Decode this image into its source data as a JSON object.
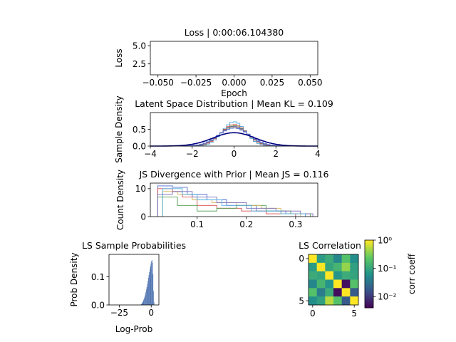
{
  "chart_data": [
    {
      "id": "loss",
      "type": "line",
      "title": "Loss | 0:00:06.104380",
      "xlabel": "Epoch",
      "ylabel": "Loss",
      "xlim": [
        -0.055,
        0.055
      ],
      "ylim": [
        1.0,
        5.6
      ],
      "xticks": [
        -0.05,
        -0.025,
        0.0,
        0.025,
        0.05
      ],
      "xtick_labels": [
        "−0.050",
        "−0.025",
        "0.000",
        "0.025",
        "0.050"
      ],
      "yticks": [
        2.5,
        5.0
      ],
      "ytick_labels": [
        "2.5",
        "5.0"
      ],
      "series": []
    },
    {
      "id": "latent",
      "type": "line",
      "title": "Latent Space Distribution | Mean KL = 0.109",
      "xlabel": "",
      "ylabel": "Sample Density",
      "xlim": [
        -4,
        4
      ],
      "ylim": [
        0,
        1.0
      ],
      "xticks": [
        -4,
        -2,
        0,
        2,
        4
      ],
      "xtick_labels": [
        "−4",
        "−2",
        "0",
        "2",
        "4"
      ],
      "yticks": [
        0.0,
        0.5
      ],
      "ytick_labels": [
        "0.0",
        "0.5"
      ],
      "prior": {
        "mean": 0,
        "std": 1,
        "color": "#000080"
      },
      "series": [
        {
          "std": 0.55,
          "color": "#4fb0e0"
        },
        {
          "std": 0.62,
          "color": "#d94a4a"
        },
        {
          "std": 0.66,
          "color": "#4a9a4a"
        },
        {
          "std": 0.7,
          "color": "#d6b35a"
        },
        {
          "std": 0.68,
          "color": "#7a6ab8"
        },
        {
          "std": 0.74,
          "color": "#4a6ad0"
        }
      ]
    },
    {
      "id": "js",
      "type": "histogram",
      "title": "JS Divergence with Prior | Mean JS = 0.116",
      "xlabel": "",
      "ylabel": "Count Density",
      "xlim": [
        0.005,
        0.345
      ],
      "ylim": [
        0,
        12
      ],
      "xticks": [
        0.1,
        0.2,
        0.3
      ],
      "xtick_labels": [
        "0.1",
        "0.2",
        "0.3"
      ],
      "yticks": [
        0,
        10
      ],
      "ytick_labels": [
        "0",
        "10"
      ],
      "series": [
        {
          "color": "#4a6ad0",
          "edges": [
            0.02,
            0.05,
            0.08,
            0.12,
            0.16,
            0.22,
            0.28,
            0.32
          ],
          "counts": [
            11,
            10.5,
            8,
            6,
            4,
            2,
            1
          ]
        },
        {
          "color": "#d94a4a",
          "edges": [
            0.02,
            0.05,
            0.07,
            0.1,
            0.14,
            0.19,
            0.24,
            0.3
          ],
          "counts": [
            10,
            9,
            7,
            4,
            3,
            2,
            1
          ]
        },
        {
          "color": "#4a9a4a",
          "edges": [
            0.02,
            0.06,
            0.1,
            0.14,
            0.18,
            0.24,
            0.29,
            0.33
          ],
          "counts": [
            7,
            4,
            2,
            3,
            4,
            2,
            1
          ]
        },
        {
          "color": "#d6b35a",
          "edges": [
            0.03,
            0.06,
            0.09,
            0.13,
            0.18,
            0.23,
            0.27,
            0.31
          ],
          "counts": [
            9,
            8,
            6,
            5,
            4,
            3,
            1
          ]
        },
        {
          "color": "#7a6ab8",
          "edges": [
            0.02,
            0.05,
            0.09,
            0.14,
            0.2,
            0.26,
            0.31,
            0.335
          ],
          "counts": [
            8,
            9,
            7,
            5,
            3,
            2,
            1
          ]
        },
        {
          "color": "#4fb0e0",
          "edges": [
            0.03,
            0.07,
            0.1,
            0.15,
            0.21,
            0.27,
            0.32
          ],
          "counts": [
            10,
            8,
            6,
            4,
            2,
            1
          ]
        }
      ]
    },
    {
      "id": "ls-prob",
      "type": "bar",
      "title": "LS Sample Probabilities",
      "xlabel": "Log-Prob",
      "ylabel": "Prob Density",
      "xlim": [
        -33,
        6
      ],
      "ylim": [
        0,
        0.18
      ],
      "xticks": [
        -25,
        0
      ],
      "xtick_labels": [
        "−25",
        "0"
      ],
      "yticks": [
        0.0,
        0.1
      ],
      "ytick_labels": [
        "0.0",
        "0.1"
      ],
      "color": "#4c72b0",
      "bin_width": 0.4,
      "x": [
        -8.0,
        -7.6,
        -7.2,
        -6.8,
        -6.4,
        -6.0,
        -5.6,
        -5.2,
        -4.8,
        -4.4,
        -4.0,
        -3.6,
        -3.2,
        -2.8,
        -2.4,
        -2.0,
        -1.6,
        -1.2,
        -0.8,
        -0.4,
        0.0,
        0.4,
        0.8,
        1.2,
        1.6,
        2.0
      ],
      "values": [
        0.003,
        0.005,
        0.008,
        0.011,
        0.015,
        0.02,
        0.025,
        0.031,
        0.038,
        0.046,
        0.055,
        0.064,
        0.074,
        0.085,
        0.096,
        0.107,
        0.117,
        0.128,
        0.138,
        0.148,
        0.156,
        0.16,
        0.15,
        0.11,
        0.05,
        0.01
      ]
    },
    {
      "id": "ls-corr",
      "type": "heatmap",
      "title": "LS Correlation",
      "xlabel": "",
      "ylabel": "",
      "xticks": [
        0,
        5
      ],
      "yticks": [
        0,
        5
      ],
      "colorbar_label": "corr coeff",
      "colorbar_scale": "log",
      "colorbar_range": [
        0.004,
        1.0
      ],
      "colorbar_ticks": [
        0.01,
        0.1,
        1.0
      ],
      "colorbar_tick_labels": [
        "10⁻²",
        "10⁻¹",
        "10⁰"
      ],
      "colormap": "viridis",
      "matrix": [
        [
          1.0,
          0.08,
          0.12,
          0.05,
          0.2,
          0.06
        ],
        [
          0.08,
          1.0,
          0.1,
          0.15,
          0.4,
          0.09
        ],
        [
          0.12,
          0.1,
          1.0,
          0.07,
          0.12,
          0.1
        ],
        [
          0.05,
          0.15,
          0.07,
          1.0,
          0.005,
          0.2
        ],
        [
          0.2,
          0.04,
          0.12,
          0.005,
          1.0,
          0.02
        ],
        [
          0.06,
          0.09,
          0.55,
          0.2,
          0.02,
          1.0
        ]
      ]
    }
  ]
}
